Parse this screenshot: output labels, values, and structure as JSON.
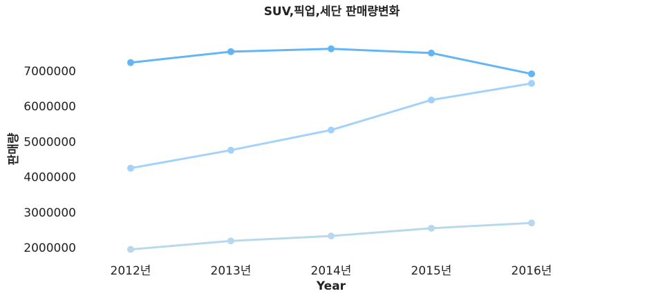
{
  "chart_data": {
    "type": "line",
    "title": "SUV,픽업,세단 판매량변화",
    "xlabel": "Year",
    "ylabel": "판매량",
    "categories": [
      "2012년",
      "2013년",
      "2014년",
      "2015년",
      "2016년"
    ],
    "yticks": [
      "2000000",
      "3000000",
      "4000000",
      "5000000",
      "6000000",
      "7000000"
    ],
    "ylim": [
      1700000,
      8000000
    ],
    "grid": false,
    "legend": "none",
    "series": [
      {
        "color": "#64b5f6",
        "values": [
          7240000,
          7550000,
          7630000,
          7510000,
          6920000
        ]
      },
      {
        "color": "#a2d2fb",
        "values": [
          4250000,
          4760000,
          5330000,
          6180000,
          6650000
        ]
      },
      {
        "color": "#b8d8ec",
        "values": [
          1950000,
          2190000,
          2330000,
          2550000,
          2700000
        ]
      }
    ]
  }
}
